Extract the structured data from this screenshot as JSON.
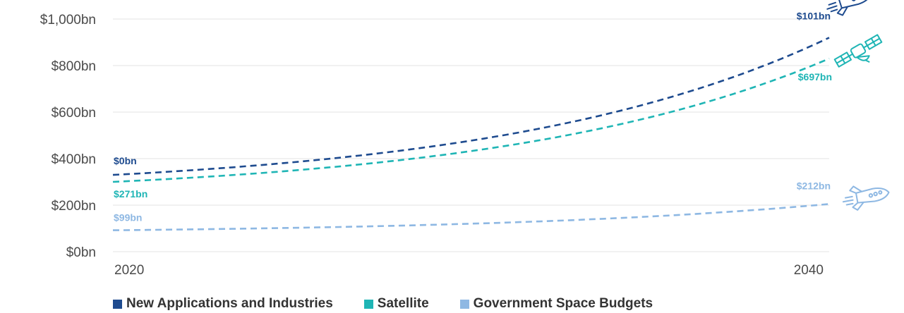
{
  "chart_data": {
    "type": "line",
    "x": [
      2020,
      2040
    ],
    "x_tick_labels": [
      "2020",
      "2040"
    ],
    "y_tick_labels": [
      "$0bn",
      "$200bn",
      "$400bn",
      "$600bn",
      "$800bn",
      "$1,000bn"
    ],
    "ylim": [
      0,
      1000
    ],
    "grid": true,
    "legend_placement": "bottom",
    "series": [
      {
        "name": "New Applications and Industries",
        "color": "#1e4b8f",
        "start_value": 330,
        "end_value": 920,
        "start_label": "$0bn",
        "end_label": "$101bn",
        "icon": "rocket-icon"
      },
      {
        "name": "Satellite",
        "color": "#1fb5b5",
        "start_value": 300,
        "end_value": 830,
        "start_label": "$271bn",
        "end_label": "$697bn",
        "icon": "satellite-icon"
      },
      {
        "name": "Government Space Budgets",
        "color": "#8eb8e3",
        "start_value": 92,
        "end_value": 205,
        "start_label": "$99bn",
        "end_label": "$212bn",
        "icon": "rocket-icon"
      }
    ]
  }
}
